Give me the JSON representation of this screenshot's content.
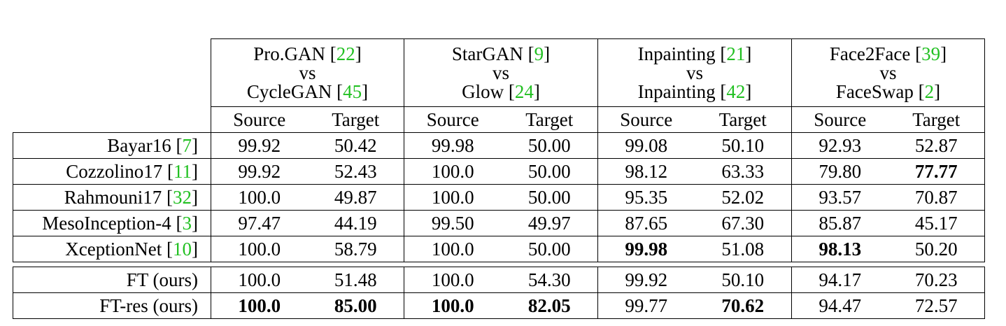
{
  "groups": [
    {
      "top": "Pro.GAN",
      "top_ref": "22",
      "vs": "vs",
      "bottom": "CycleGAN",
      "bottom_ref": "45"
    },
    {
      "top": "StarGAN",
      "top_ref": "9",
      "vs": "vs",
      "bottom": "Glow",
      "bottom_ref": "24"
    },
    {
      "top": "Inpainting",
      "top_ref": "21",
      "vs": "vs",
      "bottom": "Inpainting",
      "bottom_ref": "42"
    },
    {
      "top": "Face2Face",
      "top_ref": "39",
      "vs": "vs",
      "bottom": "FaceSwap",
      "bottom_ref": "2"
    }
  ],
  "subheaders": {
    "source": "Source",
    "target": "Target"
  },
  "rows": [
    {
      "name": "Bayar16",
      "ref": "7",
      "values": [
        "99.92",
        "50.42",
        "99.98",
        "50.00",
        "99.08",
        "50.10",
        "92.93",
        "52.87"
      ]
    },
    {
      "name": "Cozzolino17",
      "ref": "11",
      "values": [
        "99.92",
        "52.43",
        "100.0",
        "50.00",
        "98.12",
        "63.33",
        "79.80",
        "77.77"
      ]
    },
    {
      "name": "Rahmouni17",
      "ref": "32",
      "values": [
        "100.0",
        "49.87",
        "100.0",
        "50.00",
        "95.35",
        "52.02",
        "93.57",
        "70.87"
      ]
    },
    {
      "name": "MesoInception-4",
      "ref": "3",
      "values": [
        "97.47",
        "44.19",
        "99.50",
        "49.97",
        "87.65",
        "67.30",
        "85.87",
        "45.17"
      ]
    },
    {
      "name": "XceptionNet",
      "ref": "10",
      "values": [
        "100.0",
        "58.79",
        "100.0",
        "50.00",
        "99.98",
        "51.08",
        "98.13",
        "50.20"
      ]
    }
  ],
  "ours": [
    {
      "name": "FT (ours)",
      "values": [
        "100.0",
        "51.48",
        "100.0",
        "54.30",
        "99.92",
        "50.10",
        "94.17",
        "70.23"
      ]
    },
    {
      "name": "FT-res (ours)",
      "values": [
        "100.0",
        "85.00",
        "100.0",
        "82.05",
        "99.77",
        "70.62",
        "94.47",
        "72.57"
      ]
    }
  ],
  "colors": {
    "reference": "#22c022",
    "text": "#000000",
    "rule": "#000000"
  }
}
